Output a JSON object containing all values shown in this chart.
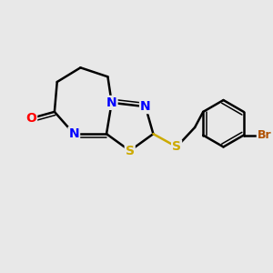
{
  "background_color": "#e8e8e8",
  "atom_colors": {
    "C": "#000000",
    "N": "#0000ff",
    "S": "#ccaa00",
    "O": "#ff0000",
    "Br": "#b05000"
  },
  "bond_color": "#000000",
  "bond_width": 1.8,
  "font_size_atoms": 10,
  "font_size_br": 9,
  "figsize": [
    3.0,
    3.0
  ],
  "dpi": 100
}
